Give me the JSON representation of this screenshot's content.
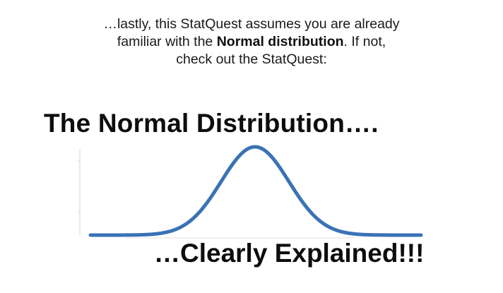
{
  "intro": {
    "line1": "…lastly, this StatQuest assumes you are already",
    "line2_pre": "familiar with the ",
    "line2_bold": "Normal distribution",
    "line2_post": ". If not,",
    "line3": "check out the StatQuest:"
  },
  "thumbnail": {
    "title": "The Normal Distribution….",
    "subtitle": "…Clearly Explained!!!"
  },
  "colors": {
    "curve": "#3a72b5",
    "axis": "#d4d4d4",
    "text": "#111111"
  }
}
